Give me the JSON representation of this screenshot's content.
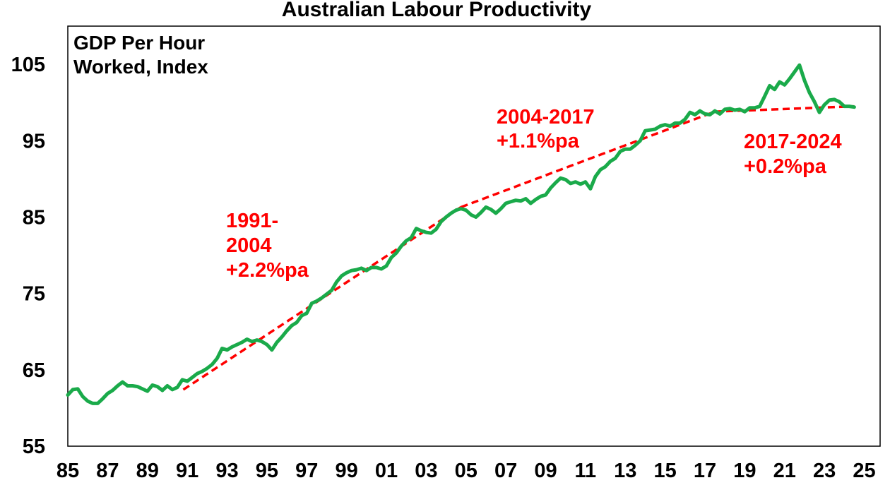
{
  "chart_data": {
    "type": "line",
    "title": "Australian Labour Productivity",
    "series_label_lines": [
      "GDP Per Hour",
      "Worked, Index"
    ],
    "ylim": [
      55,
      110
    ],
    "yticks": [
      55,
      65,
      75,
      85,
      95,
      105
    ],
    "xlim": [
      1985,
      2025.8
    ],
    "xticks": [
      {
        "value": 1985,
        "label": "85"
      },
      {
        "value": 1987,
        "label": "87"
      },
      {
        "value": 1989,
        "label": "89"
      },
      {
        "value": 1991,
        "label": "91"
      },
      {
        "value": 1993,
        "label": "93"
      },
      {
        "value": 1995,
        "label": "95"
      },
      {
        "value": 1997,
        "label": "97"
      },
      {
        "value": 1999,
        "label": "99"
      },
      {
        "value": 2001,
        "label": "01"
      },
      {
        "value": 2003,
        "label": "03"
      },
      {
        "value": 2005,
        "label": "05"
      },
      {
        "value": 2007,
        "label": "07"
      },
      {
        "value": 2009,
        "label": "09"
      },
      {
        "value": 2011,
        "label": "11"
      },
      {
        "value": 2013,
        "label": "13"
      },
      {
        "value": 2015,
        "label": "15"
      },
      {
        "value": 2017,
        "label": "17"
      },
      {
        "value": 2019,
        "label": "19"
      },
      {
        "value": 2021,
        "label": "21"
      },
      {
        "value": 2023,
        "label": "23"
      },
      {
        "value": 2025,
        "label": "25"
      }
    ],
    "colors": {
      "line": "#1aaa4a",
      "trend": "#ff0000",
      "axis": "#000000"
    },
    "series": [
      {
        "points": [
          [
            1985.0,
            61.7
          ],
          [
            1985.25,
            62.4
          ],
          [
            1985.5,
            62.5
          ],
          [
            1985.75,
            61.5
          ],
          [
            1986.0,
            60.9
          ],
          [
            1986.25,
            60.6
          ],
          [
            1986.5,
            60.6
          ],
          [
            1986.75,
            61.2
          ],
          [
            1987.0,
            61.9
          ],
          [
            1987.25,
            62.3
          ],
          [
            1987.5,
            62.9
          ],
          [
            1987.75,
            63.4
          ],
          [
            1988.0,
            62.9
          ],
          [
            1988.25,
            62.9
          ],
          [
            1988.5,
            62.8
          ],
          [
            1988.75,
            62.5
          ],
          [
            1989.0,
            62.2
          ],
          [
            1989.25,
            63.0
          ],
          [
            1989.5,
            62.8
          ],
          [
            1989.75,
            62.3
          ],
          [
            1990.0,
            62.9
          ],
          [
            1990.25,
            62.4
          ],
          [
            1990.5,
            62.7
          ],
          [
            1990.75,
            63.7
          ],
          [
            1991.0,
            63.5
          ],
          [
            1991.25,
            64.0
          ],
          [
            1991.5,
            64.5
          ],
          [
            1991.75,
            64.8
          ],
          [
            1992.0,
            65.2
          ],
          [
            1992.25,
            65.7
          ],
          [
            1992.5,
            66.5
          ],
          [
            1992.75,
            67.8
          ],
          [
            1993.0,
            67.6
          ],
          [
            1993.25,
            68.0
          ],
          [
            1993.5,
            68.3
          ],
          [
            1993.75,
            68.6
          ],
          [
            1994.0,
            69.0
          ],
          [
            1994.25,
            68.7
          ],
          [
            1994.5,
            68.9
          ],
          [
            1994.75,
            68.7
          ],
          [
            1995.0,
            68.3
          ],
          [
            1995.25,
            67.6
          ],
          [
            1995.5,
            68.6
          ],
          [
            1995.75,
            69.3
          ],
          [
            1996.0,
            70.1
          ],
          [
            1996.25,
            70.8
          ],
          [
            1996.5,
            71.2
          ],
          [
            1996.75,
            72.1
          ],
          [
            1997.0,
            72.4
          ],
          [
            1997.25,
            73.7
          ],
          [
            1997.5,
            74.0
          ],
          [
            1997.75,
            74.4
          ],
          [
            1998.0,
            74.9
          ],
          [
            1998.25,
            75.4
          ],
          [
            1998.5,
            76.5
          ],
          [
            1998.75,
            77.3
          ],
          [
            1999.0,
            77.7
          ],
          [
            1999.25,
            78.0
          ],
          [
            1999.5,
            78.1
          ],
          [
            1999.75,
            78.3
          ],
          [
            2000.0,
            78.0
          ],
          [
            2000.25,
            78.4
          ],
          [
            2000.5,
            78.4
          ],
          [
            2000.75,
            78.2
          ],
          [
            2001.0,
            78.6
          ],
          [
            2001.25,
            79.7
          ],
          [
            2001.5,
            80.3
          ],
          [
            2001.75,
            81.2
          ],
          [
            2002.0,
            81.9
          ],
          [
            2002.25,
            82.3
          ],
          [
            2002.5,
            83.5
          ],
          [
            2002.75,
            83.2
          ],
          [
            2003.0,
            83.0
          ],
          [
            2003.25,
            82.9
          ],
          [
            2003.5,
            83.4
          ],
          [
            2003.75,
            84.4
          ],
          [
            2004.0,
            85.0
          ],
          [
            2004.25,
            85.5
          ],
          [
            2004.5,
            85.9
          ],
          [
            2004.75,
            86.1
          ],
          [
            2005.0,
            85.9
          ],
          [
            2005.25,
            85.3
          ],
          [
            2005.5,
            85.0
          ],
          [
            2005.75,
            85.6
          ],
          [
            2006.0,
            86.3
          ],
          [
            2006.25,
            86.0
          ],
          [
            2006.5,
            85.5
          ],
          [
            2006.75,
            86.1
          ],
          [
            2007.0,
            86.8
          ],
          [
            2007.25,
            87.0
          ],
          [
            2007.5,
            87.2
          ],
          [
            2007.75,
            87.1
          ],
          [
            2008.0,
            87.4
          ],
          [
            2008.25,
            86.8
          ],
          [
            2008.5,
            87.3
          ],
          [
            2008.75,
            87.7
          ],
          [
            2009.0,
            87.9
          ],
          [
            2009.25,
            88.8
          ],
          [
            2009.5,
            89.5
          ],
          [
            2009.75,
            90.1
          ],
          [
            2010.0,
            89.9
          ],
          [
            2010.25,
            89.4
          ],
          [
            2010.5,
            89.6
          ],
          [
            2010.75,
            89.3
          ],
          [
            2011.0,
            89.6
          ],
          [
            2011.25,
            88.7
          ],
          [
            2011.5,
            90.3
          ],
          [
            2011.75,
            91.2
          ],
          [
            2012.0,
            91.6
          ],
          [
            2012.25,
            92.3
          ],
          [
            2012.5,
            92.7
          ],
          [
            2012.75,
            93.6
          ],
          [
            2013.0,
            93.9
          ],
          [
            2013.25,
            93.9
          ],
          [
            2013.5,
            94.4
          ],
          [
            2013.75,
            95.0
          ],
          [
            2014.0,
            96.3
          ],
          [
            2014.25,
            96.4
          ],
          [
            2014.5,
            96.5
          ],
          [
            2014.75,
            96.9
          ],
          [
            2015.0,
            97.1
          ],
          [
            2015.25,
            96.9
          ],
          [
            2015.5,
            97.3
          ],
          [
            2015.75,
            97.3
          ],
          [
            2016.0,
            97.8
          ],
          [
            2016.25,
            98.7
          ],
          [
            2016.5,
            98.4
          ],
          [
            2016.75,
            98.9
          ],
          [
            2017.0,
            98.5
          ],
          [
            2017.25,
            98.4
          ],
          [
            2017.5,
            98.9
          ],
          [
            2017.75,
            98.5
          ],
          [
            2018.0,
            99.1
          ],
          [
            2018.25,
            99.2
          ],
          [
            2018.5,
            99.0
          ],
          [
            2018.75,
            99.1
          ],
          [
            2019.0,
            98.8
          ],
          [
            2019.25,
            99.3
          ],
          [
            2019.5,
            99.3
          ],
          [
            2019.75,
            99.5
          ],
          [
            2020.0,
            100.8
          ],
          [
            2020.25,
            102.2
          ],
          [
            2020.5,
            101.7
          ],
          [
            2020.75,
            102.7
          ],
          [
            2021.0,
            102.3
          ],
          [
            2021.25,
            103.1
          ],
          [
            2021.5,
            104.0
          ],
          [
            2021.75,
            104.9
          ],
          [
            2022.0,
            102.9
          ],
          [
            2022.25,
            101.3
          ],
          [
            2022.5,
            100.1
          ],
          [
            2022.75,
            98.7
          ],
          [
            2023.0,
            99.7
          ],
          [
            2023.25,
            100.3
          ],
          [
            2023.5,
            100.4
          ],
          [
            2023.75,
            100.1
          ],
          [
            2024.0,
            99.5
          ],
          [
            2024.25,
            99.5
          ],
          [
            2024.5,
            99.4
          ]
        ]
      }
    ],
    "trend_lines": [
      {
        "from": [
          1990.8,
          62.4
        ],
        "to": [
          2004.75,
          86.3
        ]
      },
      {
        "from": [
          2004.75,
          86.3
        ],
        "to": [
          2017.5,
          98.8
        ]
      },
      {
        "from": [
          2017.5,
          98.8
        ],
        "to": [
          2024.5,
          99.5
        ]
      }
    ],
    "annotations": [
      {
        "lines": [
          "1991-",
          "2004",
          "+2.2%pa"
        ]
      },
      {
        "lines": [
          "2004-2017",
          "+1.1%pa"
        ]
      },
      {
        "lines": [
          "2017-2024",
          "+0.2%pa"
        ]
      }
    ]
  }
}
